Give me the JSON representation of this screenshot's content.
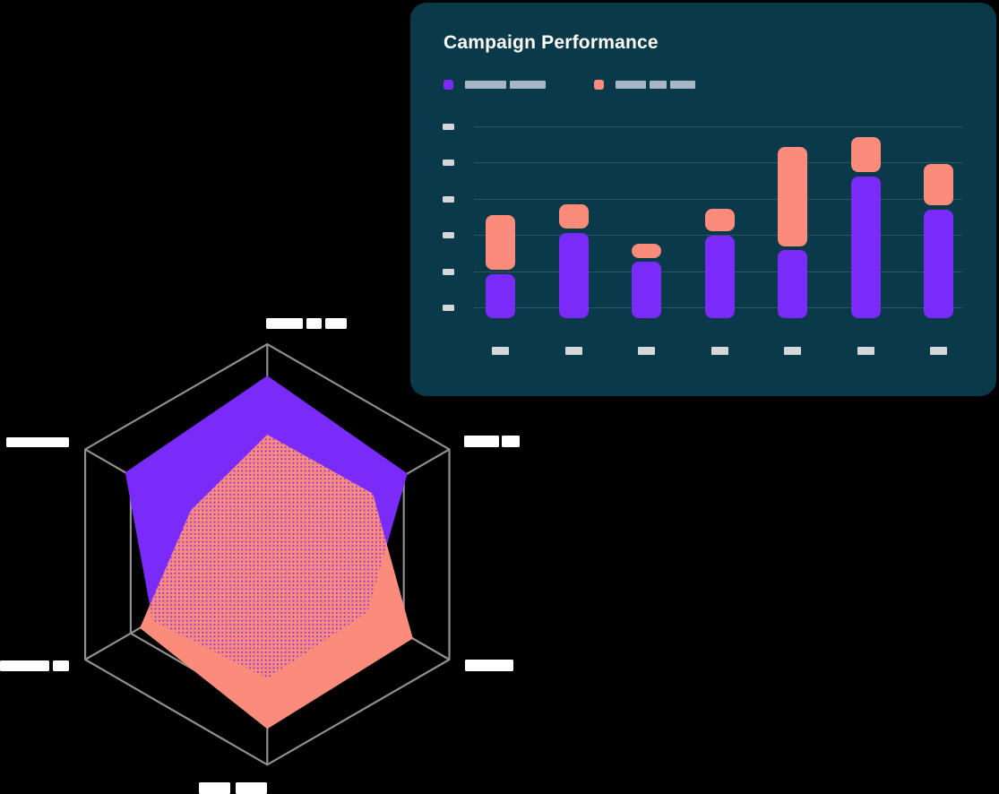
{
  "page": {
    "background": "#000000"
  },
  "card": {
    "title": "Campaign Performance",
    "background": "#0A3A4A",
    "title_color": "#FFFFFF",
    "gridline_color": "#2B5563",
    "tick_block_color": "#D5D6D7",
    "legend": {
      "placeholder_block_color": "#A8B5C4",
      "items": [
        {
          "name": "series-1",
          "swatch_color": "#7B2BF9",
          "label_redacted": true,
          "block_widths": [
            46,
            40
          ]
        },
        {
          "name": "series-2",
          "swatch_color": "#FB8B7B",
          "label_redacted": true,
          "block_widths": [
            34,
            19,
            28
          ]
        }
      ]
    },
    "y_axis": {
      "tick_count": 6,
      "labels_redacted": true
    },
    "x_axis": {
      "category_count": 7,
      "labels_redacted": true
    }
  },
  "chart_data": [
    {
      "type": "bar",
      "stacked": true,
      "title": "Campaign Performance",
      "categories": [
        "",
        "",
        "",
        "",
        "",
        "",
        ""
      ],
      "categories_redacted": true,
      "series": [
        {
          "name": "series-1 (label redacted)",
          "color": "#7B2BF9",
          "values": [
            1.21,
            2.34,
            1.54,
            2.27,
            1.86,
            3.88,
            2.98
          ]
        },
        {
          "name": "series-2 (label redacted)",
          "color": "#FB8B7B",
          "values": [
            1.49,
            0.66,
            0.39,
            0.62,
            2.73,
            0.96,
            1.12
          ]
        }
      ],
      "stack_gap_units": 0.12,
      "ylim": [
        0,
        5.56
      ],
      "gridlines": [
        0.29,
        1.29,
        2.29,
        3.28,
        4.28,
        5.27
      ],
      "grid_on": true,
      "legend_position": "top-left",
      "ylabel": "",
      "xlabel": ""
    },
    {
      "type": "radar",
      "axes": 6,
      "axis_order": [
        "top",
        "upper-right",
        "lower-right",
        "bottom",
        "lower-left",
        "upper-left"
      ],
      "rmax": 1.0,
      "rings": [
        0.75,
        1.0
      ],
      "grid_color": "#8F8F8F",
      "axis_labels_redacted": true,
      "label_block_color": "#FFFFFF",
      "series": [
        {
          "name": "series-1 (label redacted)",
          "color": "#7B2BF9",
          "fill": "solid",
          "values": [
            0.85,
            0.77,
            0.55,
            0.59,
            0.63,
            0.78
          ]
        },
        {
          "name": "series-2 (label redacted)",
          "color": "#FB8B7B",
          "fill": "solid-with-dot-pattern-over-overlap",
          "values": [
            0.57,
            0.58,
            0.8,
            0.83,
            0.7,
            0.42
          ]
        }
      ],
      "label_blocks": {
        "top": [
          [
            297,
            355,
            41,
            12
          ],
          [
            342,
            355,
            17,
            12
          ],
          [
            363,
            355,
            24,
            12
          ]
        ],
        "upper_right": [
          [
            518,
            486,
            39,
            13
          ],
          [
            560,
            486,
            20,
            13
          ]
        ],
        "lower_right": [
          [
            519,
            736,
            54,
            13
          ]
        ],
        "bottom": [
          [
            222,
            873,
            35,
            13
          ],
          [
            263,
            873,
            35,
            13
          ]
        ],
        "lower_left": [
          [
            0,
            737,
            55,
            12
          ],
          [
            59,
            737,
            18,
            12
          ]
        ],
        "upper_left": [
          [
            7,
            488,
            70,
            11
          ]
        ]
      }
    }
  ]
}
